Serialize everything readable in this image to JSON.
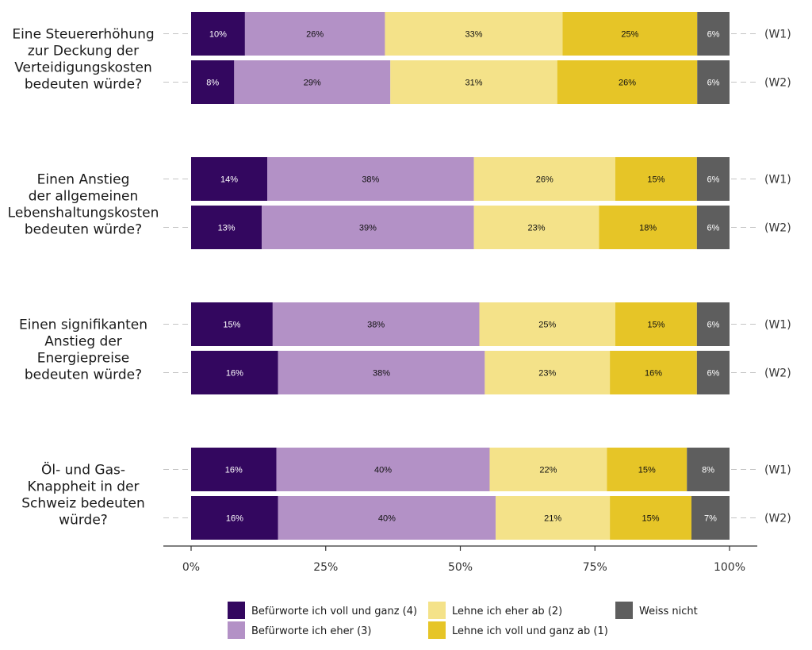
{
  "chart_data": {
    "type": "bar",
    "orientation": "horizontal",
    "stacked": "percent",
    "questions": [
      {
        "label": [
          "Eine Steuererhöhung",
          "zur Deckung der",
          "Verteidigungskosten",
          "bedeuten würde?"
        ],
        "rows": [
          {
            "wave": "(W1)",
            "values": [
              10,
              26,
              33,
              25,
              6
            ]
          },
          {
            "wave": "(W2)",
            "values": [
              8,
              29,
              31,
              26,
              6
            ]
          }
        ]
      },
      {
        "label": [
          "Einen Anstieg",
          "der allgemeinen",
          "Lebenshaltungskosten",
          "bedeuten würde?"
        ],
        "rows": [
          {
            "wave": "(W1)",
            "values": [
              14,
              38,
              26,
              15,
              6
            ]
          },
          {
            "wave": "(W2)",
            "values": [
              13,
              39,
              23,
              18,
              6
            ]
          }
        ]
      },
      {
        "label": [
          "Einen signifikanten",
          "Anstieg der",
          "Energiepreise",
          "bedeuten würde?"
        ],
        "rows": [
          {
            "wave": "(W1)",
            "values": [
              15,
              38,
              25,
              15,
              6
            ]
          },
          {
            "wave": "(W2)",
            "values": [
              16,
              38,
              23,
              16,
              6
            ]
          }
        ]
      },
      {
        "label": [
          "Öl- und Gas-",
          "Knappheit in der",
          "Schweiz bedeuten",
          "würde?"
        ],
        "rows": [
          {
            "wave": "(W1)",
            "values": [
              16,
              40,
              22,
              15,
              8
            ]
          },
          {
            "wave": "(W2)",
            "values": [
              16,
              40,
              21,
              15,
              7
            ]
          }
        ]
      }
    ],
    "series": [
      {
        "name": "Befürworte ich voll und ganz (4)",
        "color": "#33075f",
        "text_color": "#ffffff"
      },
      {
        "name": "Befürworte ich eher (3)",
        "color": "#b391c6",
        "text_color": "#111111"
      },
      {
        "name": "Lehne ich eher ab (2)",
        "color": "#f4e289",
        "text_color": "#111111"
      },
      {
        "name": "Lehne ich voll und ganz ab (1)",
        "color": "#e6c527",
        "text_color": "#111111"
      },
      {
        "name": "Weiss nicht",
        "color": "#5e5e5e",
        "text_color": "#ffffff"
      }
    ],
    "xlim": [
      0,
      100
    ],
    "x_ticks": [
      "0%",
      "25%",
      "50%",
      "75%",
      "100%"
    ],
    "legend_position": "bottom",
    "grid": false
  }
}
